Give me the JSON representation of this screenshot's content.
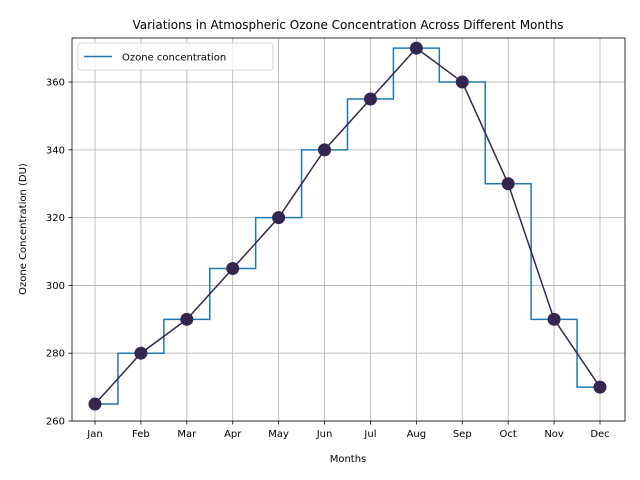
{
  "chart_data": {
    "type": "line",
    "title": "Variations in Atmospheric Ozone Concentration Across Different Months",
    "xlabel": "Months",
    "ylabel": "Ozone Concentration (DU)",
    "categories": [
      "Jan",
      "Feb",
      "Mar",
      "Apr",
      "May",
      "Jun",
      "Jul",
      "Aug",
      "Sep",
      "Oct",
      "Nov",
      "Dec"
    ],
    "series": [
      {
        "name": "Ozone concentration",
        "style": "step-mid",
        "color": "#1f77b4",
        "values": [
          265,
          280,
          290,
          305,
          320,
          340,
          355,
          370,
          360,
          330,
          290,
          270
        ]
      },
      {
        "style": "line-with-markers",
        "color": "#35264f",
        "values": [
          265,
          280,
          290,
          305,
          320,
          340,
          355,
          370,
          360,
          330,
          290,
          270
        ]
      }
    ],
    "ylim": [
      260,
      373
    ],
    "yticks": [
      260,
      280,
      300,
      320,
      340,
      360
    ],
    "grid": true,
    "legend": "upper-left"
  }
}
